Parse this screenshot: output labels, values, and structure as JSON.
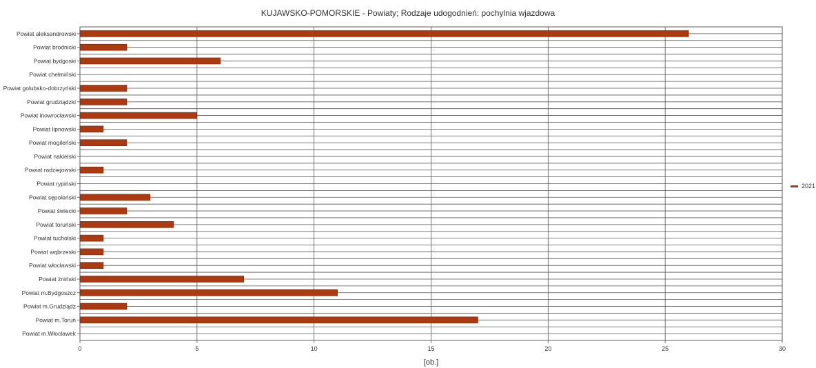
{
  "chart_data": {
    "type": "bar",
    "orientation": "horizontal",
    "title": "KUJAWSKO-POMORSKIE - Powiaty; Rodzaje udogodnień: pochylnia wjazdowa",
    "xlabel": "[ob.]",
    "ylabel": "",
    "xlim": [
      0,
      30
    ],
    "xticks": [
      0,
      5,
      10,
      15,
      20,
      25,
      30
    ],
    "grid": true,
    "legend_position": "right",
    "colors": {
      "bar": "#a93a12",
      "bar_stroke": "#6e2208",
      "grid": "#555555",
      "text": "#333333"
    },
    "categories": [
      "Powiat aleksandrowski",
      "Powiat brodnicki",
      "Powiat bydgoski",
      "Powiat chełmiński",
      "Powiat golubsko-dobrzyński",
      "Powiat grudziądzki",
      "Powiat inowrocławski",
      "Powiat lipnowski",
      "Powiat mogileński",
      "Powiat nakielski",
      "Powiat radziejowski",
      "Powiat rypiński",
      "Powiat sępoleński",
      "Powiat świecki",
      "Powiat toruński",
      "Powiat tucholski",
      "Powiat wąbrzeski",
      "Powiat włocławski",
      "Powiat żniński",
      "Powiat m.Bydgoszcz",
      "Powiat m.Grudziądz",
      "Powiat m.Toruń",
      "Powiat m.Włocławek"
    ],
    "series": [
      {
        "name": "2021",
        "values": [
          26,
          2,
          6,
          0,
          2,
          2,
          5,
          1,
          2,
          0,
          1,
          0,
          3,
          2,
          4,
          1,
          1,
          1,
          7,
          11,
          2,
          17,
          0
        ]
      }
    ]
  }
}
